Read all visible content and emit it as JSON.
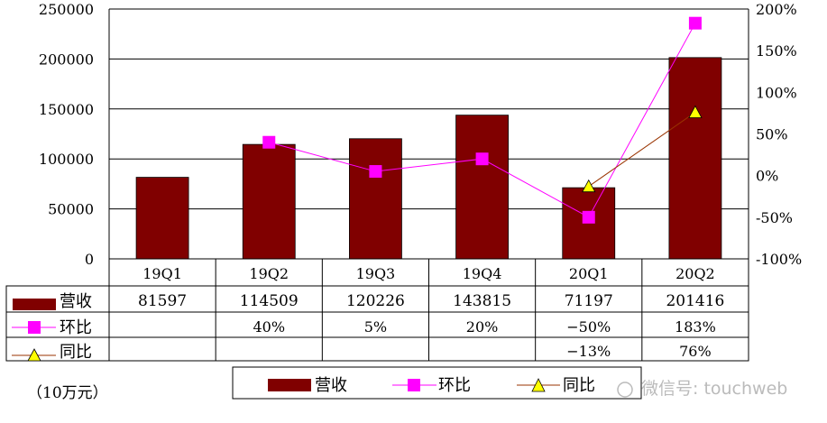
{
  "chart_data": {
    "type": "bar+line",
    "categories": [
      "19Q1",
      "19Q2",
      "19Q3",
      "19Q4",
      "20Q1",
      "20Q2"
    ],
    "series": [
      {
        "name": "营收",
        "type": "bar",
        "axis": "left",
        "color": "#800000",
        "values": [
          81597,
          114509,
          120226,
          143815,
          71197,
          201416
        ]
      },
      {
        "name": "环比",
        "type": "line",
        "axis": "right",
        "color": "#ff00ff",
        "marker": "square",
        "values": [
          null,
          40,
          5,
          20,
          -50,
          183
        ],
        "labels": [
          "",
          "40%",
          "5%",
          "20%",
          "-50%",
          "183%"
        ]
      },
      {
        "name": "同比",
        "type": "line",
        "axis": "right",
        "color": "#993300",
        "marker": "triangle",
        "marker_color": "#ffff00",
        "values": [
          null,
          null,
          null,
          null,
          -13,
          76
        ],
        "labels": [
          "",
          "",
          "",
          "",
          "-13%",
          "76%"
        ]
      }
    ],
    "left_axis": {
      "ylim": [
        0,
        250000
      ],
      "ticks": [
        "0",
        "50000",
        "100000",
        "150000",
        "200000",
        "250000"
      ]
    },
    "right_axis": {
      "ylim": [
        -100,
        200
      ],
      "ticks": [
        "-100%",
        "-50%",
        "0%",
        "50%",
        "100%",
        "150%",
        "200%"
      ]
    },
    "grid": true,
    "legend_placement": "bottom",
    "unit_note": "（10万元）"
  },
  "watermark": "微信号: touchweb"
}
